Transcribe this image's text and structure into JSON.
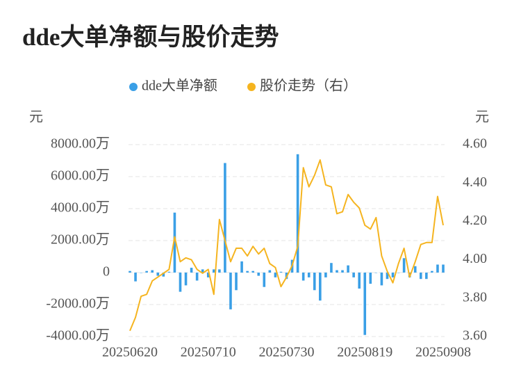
{
  "chart_data": {
    "type": "bar-line",
    "title": "dde大单净额与股价走势",
    "y_label": "元",
    "y2_label": "元",
    "categories": [
      "20250620",
      null,
      null,
      null,
      null,
      null,
      null,
      null,
      null,
      null,
      null,
      null,
      null,
      null,
      "20250710",
      null,
      null,
      null,
      null,
      null,
      null,
      null,
      null,
      null,
      null,
      null,
      null,
      null,
      "20250730",
      null,
      null,
      null,
      null,
      null,
      null,
      null,
      null,
      null,
      null,
      null,
      null,
      null,
      "20250819",
      null,
      null,
      null,
      null,
      null,
      null,
      null,
      null,
      null,
      null,
      null,
      null,
      null,
      "20250908"
    ],
    "series": [
      {
        "name": "dde大单净额",
        "color": "#3a9fe6",
        "axis": "y",
        "values": [
          100,
          -550,
          0,
          100,
          150,
          -200,
          -250,
          50,
          3750,
          -1200,
          -800,
          300,
          -500,
          200,
          -300,
          200,
          200,
          6850,
          -2300,
          -1100,
          700,
          100,
          100,
          -200,
          -900,
          150,
          -300,
          50,
          -400,
          800,
          7400,
          -500,
          -300,
          -1100,
          -1750,
          -300,
          600,
          150,
          150,
          450,
          -300,
          -1000,
          -3900,
          -700,
          0,
          -800,
          -400,
          -300,
          0,
          900,
          -300,
          400,
          -400,
          -400,
          100,
          500,
          500
        ]
      },
      {
        "name": "股价走势（右）",
        "color": "#f5b41f",
        "axis": "y2",
        "values": [
          3.63,
          3.7,
          3.81,
          3.82,
          3.89,
          3.91,
          3.93,
          3.95,
          4.12,
          3.99,
          4.01,
          4.0,
          3.95,
          3.93,
          3.95,
          3.82,
          4.21,
          4.1,
          3.99,
          4.06,
          4.06,
          4.02,
          4.07,
          4.03,
          4.06,
          3.98,
          3.96,
          3.86,
          3.91,
          3.97,
          4.07,
          4.48,
          4.38,
          4.44,
          4.52,
          4.39,
          4.38,
          4.24,
          4.25,
          4.34,
          4.3,
          4.27,
          4.18,
          4.16,
          4.22,
          4.02,
          3.94,
          3.88,
          3.98,
          4.06,
          3.91,
          3.99,
          4.08,
          4.09,
          4.09,
          4.33,
          4.18
        ]
      }
    ],
    "ylim": [
      -4000,
      8000
    ],
    "yticks": [
      {
        "value": -4000,
        "label": "-4000.00万"
      },
      {
        "value": -2000,
        "label": "-2000.00万"
      },
      0,
      {
        "value": 2000,
        "label": "2000.00万"
      },
      {
        "value": 4000,
        "label": "4000.00万"
      },
      {
        "value": 6000,
        "label": "6000.00万"
      },
      {
        "value": 8000,
        "label": "8000.00万"
      }
    ],
    "y2lim": [
      3.6,
      4.6
    ],
    "y2ticks": [
      {
        "value": 3.6,
        "label": "3.60"
      },
      {
        "value": 3.8,
        "label": "3.80"
      },
      {
        "value": 4.0,
        "label": "4.00"
      },
      {
        "value": 4.2,
        "label": "4.20"
      },
      {
        "value": 4.4,
        "label": "4.40"
      },
      {
        "value": 4.6,
        "label": "4.60"
      }
    ],
    "grid": true
  }
}
